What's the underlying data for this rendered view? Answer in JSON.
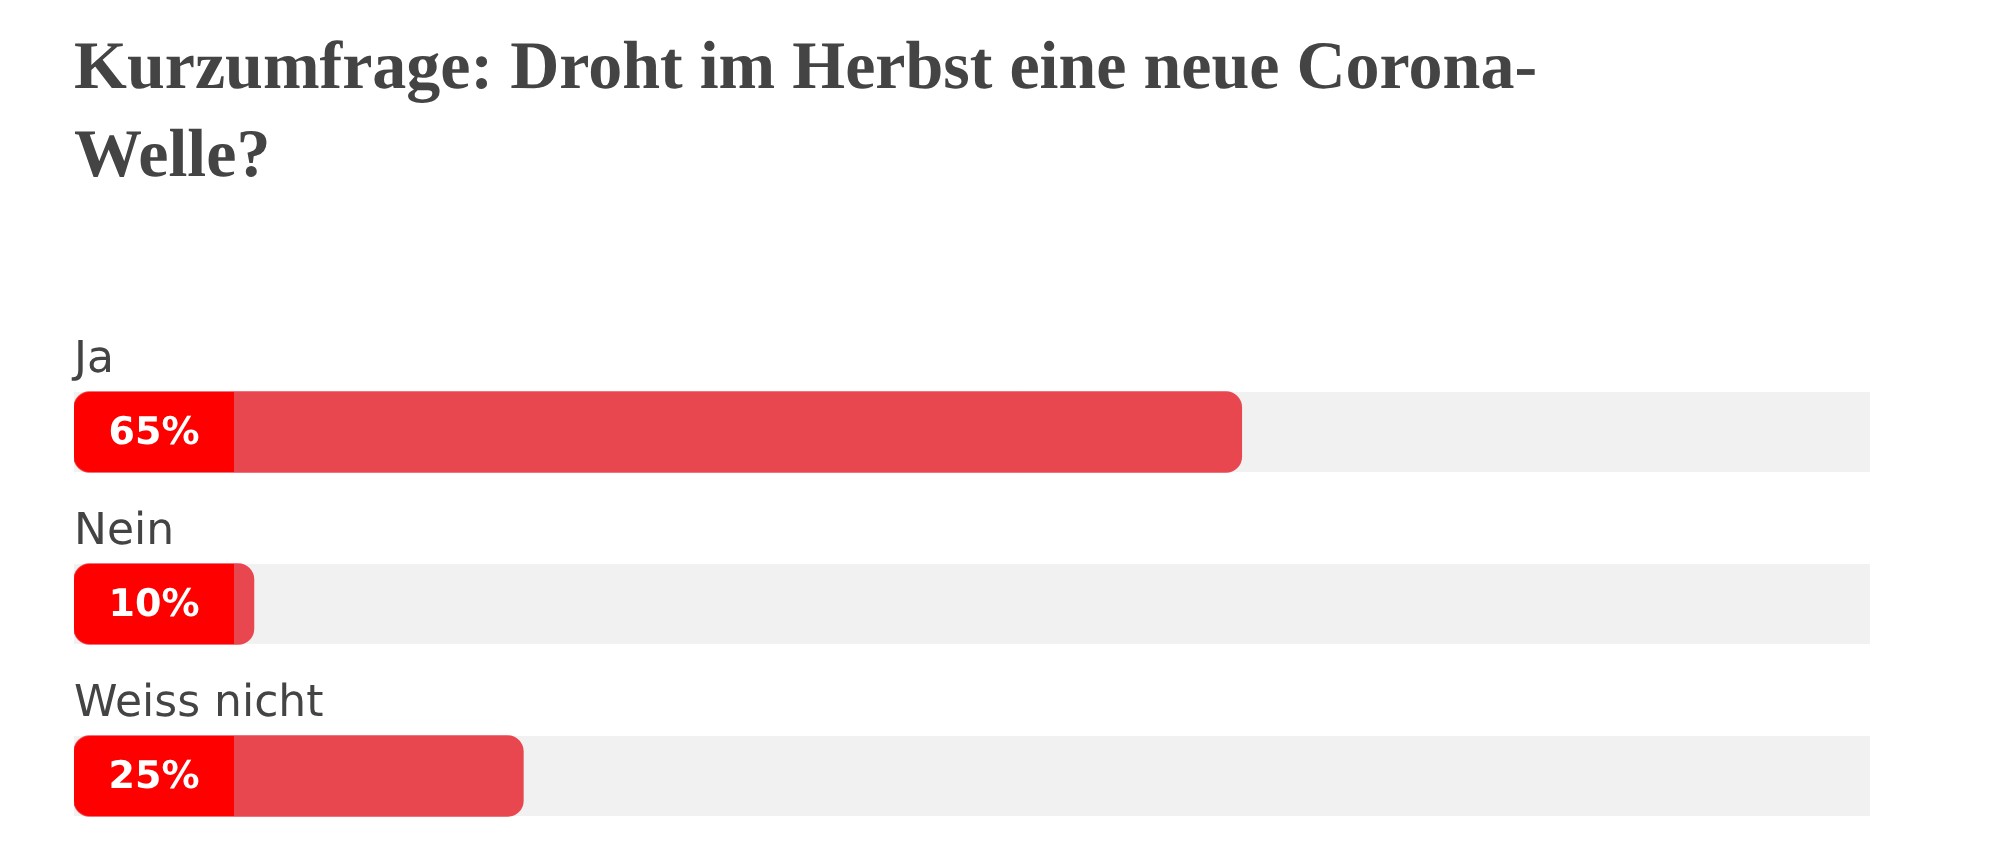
{
  "chart_data": {
    "type": "bar",
    "orientation": "horizontal",
    "title": "Kurzumfrage: Droht im Herbst eine neue Corona-Welle?",
    "categories": [
      "Ja",
      "Nein",
      "Weiss nicht"
    ],
    "values": [
      65,
      10,
      25
    ],
    "value_labels": [
      "65%",
      "10%",
      "25%"
    ],
    "color": "#e8474f",
    "xlim": [
      0,
      100
    ],
    "tick_labels": false,
    "legend": false
  }
}
